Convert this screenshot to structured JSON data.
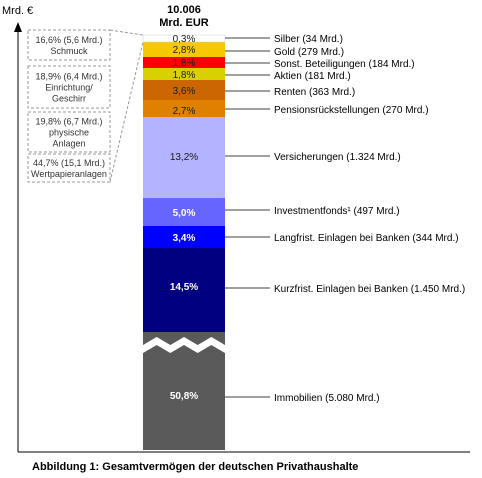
{
  "chart_data": {
    "type": "bar",
    "title": "10.006",
    "subtitle": "Mrd. EUR",
    "ylabel": "Mrd. €",
    "caption": "Abbildung 1: Gesamtvermögen der deutschen Privathaushalte",
    "segments": [
      {
        "key": "immobilien",
        "pct": "50,8%",
        "label": "Immobilien (5.080 Mrd.)",
        "value": 5080,
        "color": "#5a5a5a",
        "text_color": "#ffffff"
      },
      {
        "key": "kurzfrist",
        "pct": "14,5%",
        "label": "Kurzfrist. Einlagen bei Banken (1.450 Mrd.)",
        "value": 1450,
        "color": "#000080",
        "text_color": "#ffffff"
      },
      {
        "key": "langfrist",
        "pct": "3,4%",
        "label": "Langfrist. Einlagen bei Banken (344 Mrd.)",
        "value": 344,
        "color": "#0000ff",
        "text_color": "#ffffff"
      },
      {
        "key": "investment",
        "pct": "5,0%",
        "label": "Investmentfonds¹ (497 Mrd.)",
        "value": 497,
        "color": "#6666ff",
        "text_color": "#ffffff"
      },
      {
        "key": "versicherungen",
        "pct": "13,2%",
        "label": "Versicherungen (1.324 Mrd.)",
        "value": 1324,
        "color": "#b3b3ff",
        "text_color": "#1a1a1a"
      },
      {
        "key": "pension",
        "pct": "2,7%",
        "label": "Pensionsrückstellungen (270 Mrd.)",
        "value": 270,
        "color": "#e08000",
        "text_color": "#1a1a1a"
      },
      {
        "key": "renten",
        "pct": "3,6%",
        "label": "Renten (363 Mrd.)",
        "value": 363,
        "color": "#cc6600",
        "text_color": "#1a1a1a"
      },
      {
        "key": "aktien",
        "pct": "1,8%",
        "label": "Aktien (181 Mrd.)",
        "value": 181,
        "color": "#d8d000",
        "text_color": "#1a1a1a"
      },
      {
        "key": "beteiligungen",
        "pct": "1,8%",
        "label": "Sonst. Beteiligungen (184 Mrd.)",
        "value": 184,
        "color": "#ff0000",
        "text_color": "#1a1a1a"
      },
      {
        "key": "gold",
        "pct": "2,8%",
        "label": "Gold (279 Mrd.)",
        "value": 279,
        "color": "#f5c800",
        "text_color": "#1a1a1a"
      },
      {
        "key": "silber",
        "pct": "0,3%",
        "label": "Silber (34 Mrd.)",
        "value": 34,
        "color": "#ffffff",
        "text_color": "#1a1a1a"
      }
    ],
    "breakdown": [
      {
        "text": [
          "16,6% (5,6 Mrd.)",
          "Schmuck"
        ]
      },
      {
        "text": [
          "18,9% (6,4 Mrd.)",
          "Einrichtung/",
          "Geschirr"
        ]
      },
      {
        "text": [
          "19,8% (6,7 Mrd.)",
          "physische",
          "Anlagen"
        ]
      },
      {
        "text": [
          "44,7% (15,1 Mrd.)",
          "Wertpapieranlagen"
        ]
      }
    ],
    "axis_break": true,
    "grid": false,
    "colors": {
      "axis": "#000000",
      "connector": "#999999",
      "break_band": "#ffffff"
    }
  }
}
